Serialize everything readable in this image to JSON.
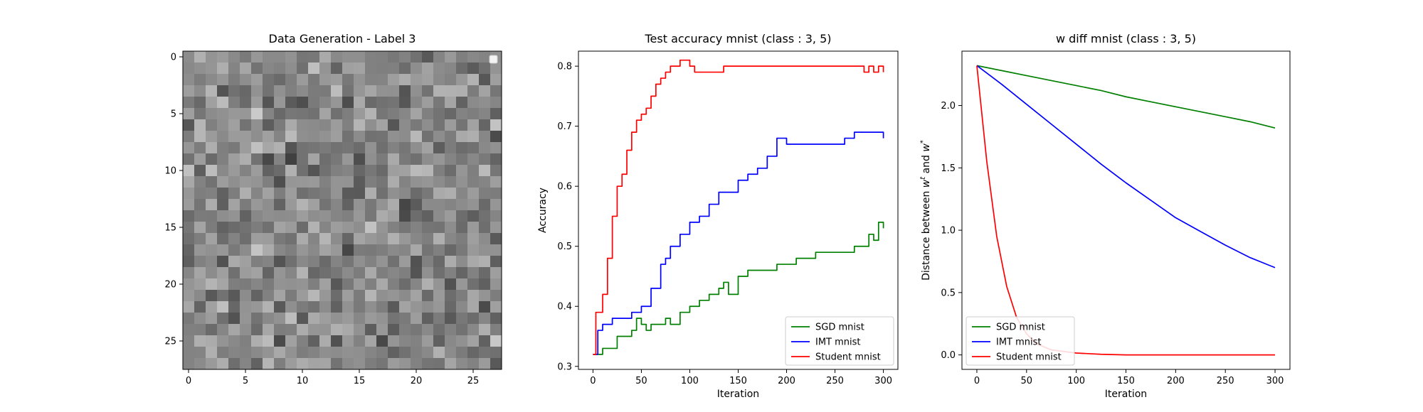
{
  "chart_data": [
    {
      "type": "heatmap",
      "title": "Data Generation - Label 3",
      "xlabel": "",
      "ylabel": "",
      "xticks": [
        0,
        5,
        10,
        15,
        20,
        25
      ],
      "yticks": [
        0,
        5,
        10,
        15,
        20,
        25
      ],
      "extent": [
        -0.5,
        27.5
      ],
      "size": [
        28,
        28
      ],
      "colormap": "gray",
      "legend": "top-right (empty)",
      "values_note": "random noise grid"
    },
    {
      "type": "line",
      "title": "Test accuracy mnist (class : 3, 5)",
      "xlabel": "Iteration",
      "ylabel": "Accuracy",
      "xlim": [
        -15,
        315
      ],
      "ylim": [
        0.295,
        0.825
      ],
      "xticks": [
        0,
        50,
        100,
        150,
        200,
        250,
        300
      ],
      "yticks": [
        0.3,
        0.4,
        0.5,
        0.6,
        0.7,
        0.8
      ],
      "legend": "bottom-right",
      "series": [
        {
          "name": "SGD mnist",
          "color": "#008000",
          "x": [
            0,
            10,
            20,
            25,
            30,
            40,
            45,
            50,
            55,
            60,
            70,
            75,
            80,
            90,
            100,
            110,
            120,
            130,
            135,
            140,
            150,
            160,
            170,
            180,
            190,
            200,
            210,
            220,
            230,
            240,
            250,
            260,
            270,
            280,
            285,
            290,
            295,
            300
          ],
          "y": [
            0.32,
            0.33,
            0.33,
            0.35,
            0.35,
            0.36,
            0.38,
            0.37,
            0.36,
            0.37,
            0.37,
            0.38,
            0.37,
            0.39,
            0.4,
            0.41,
            0.42,
            0.43,
            0.44,
            0.42,
            0.45,
            0.46,
            0.46,
            0.46,
            0.47,
            0.47,
            0.48,
            0.48,
            0.49,
            0.49,
            0.49,
            0.49,
            0.5,
            0.5,
            0.52,
            0.51,
            0.54,
            0.53
          ]
        },
        {
          "name": "IMT mnist",
          "color": "#0000ff",
          "x": [
            0,
            5,
            10,
            20,
            30,
            40,
            50,
            60,
            70,
            75,
            80,
            90,
            100,
            110,
            120,
            130,
            140,
            150,
            160,
            170,
            180,
            190,
            200,
            210,
            230,
            250,
            260,
            270,
            280,
            290,
            300
          ],
          "y": [
            0.32,
            0.36,
            0.37,
            0.38,
            0.38,
            0.39,
            0.4,
            0.43,
            0.47,
            0.48,
            0.5,
            0.52,
            0.54,
            0.55,
            0.57,
            0.59,
            0.59,
            0.61,
            0.62,
            0.63,
            0.65,
            0.68,
            0.67,
            0.67,
            0.67,
            0.67,
            0.68,
            0.69,
            0.69,
            0.69,
            0.68
          ]
        },
        {
          "name": "Student mnist",
          "color": "#ff0000",
          "x": [
            0,
            3,
            6,
            10,
            15,
            20,
            25,
            30,
            35,
            40,
            45,
            50,
            55,
            60,
            65,
            70,
            75,
            80,
            90,
            100,
            105,
            130,
            135,
            200,
            250,
            275,
            280,
            285,
            290,
            295,
            300
          ],
          "y": [
            0.32,
            0.39,
            0.39,
            0.42,
            0.48,
            0.55,
            0.6,
            0.62,
            0.66,
            0.69,
            0.71,
            0.72,
            0.73,
            0.75,
            0.77,
            0.78,
            0.79,
            0.8,
            0.81,
            0.8,
            0.79,
            0.79,
            0.8,
            0.8,
            0.8,
            0.8,
            0.79,
            0.8,
            0.79,
            0.8,
            0.79
          ]
        }
      ]
    },
    {
      "type": "line",
      "title": "w diff mnist (class : 3, 5)",
      "xlabel": "Iteration",
      "ylabel": "Distance between w^t and w^*",
      "xlim": [
        -15,
        315
      ],
      "ylim": [
        -0.116,
        2.436
      ],
      "xticks": [
        0,
        50,
        100,
        150,
        200,
        250,
        300
      ],
      "yticks": [
        0.0,
        0.5,
        1.0,
        1.5,
        2.0
      ],
      "legend": "bottom-left",
      "series": [
        {
          "name": "SGD mnist",
          "color": "#008000",
          "x": [
            0,
            25,
            50,
            75,
            100,
            125,
            150,
            175,
            200,
            225,
            250,
            275,
            300
          ],
          "y": [
            2.32,
            2.28,
            2.24,
            2.2,
            2.16,
            2.12,
            2.07,
            2.03,
            1.99,
            1.95,
            1.91,
            1.87,
            1.82
          ]
        },
        {
          "name": "IMT mnist",
          "color": "#0000ff",
          "x": [
            0,
            25,
            50,
            75,
            100,
            125,
            150,
            175,
            200,
            225,
            250,
            275,
            300
          ],
          "y": [
            2.32,
            2.17,
            2.01,
            1.85,
            1.69,
            1.53,
            1.38,
            1.24,
            1.1,
            0.99,
            0.88,
            0.78,
            0.7
          ]
        },
        {
          "name": "Student mnist",
          "color": "#ff0000",
          "x": [
            0,
            10,
            20,
            30,
            40,
            50,
            60,
            75,
            100,
            125,
            150,
            200,
            250,
            300
          ],
          "y": [
            2.32,
            1.55,
            0.95,
            0.55,
            0.3,
            0.17,
            0.09,
            0.04,
            0.015,
            0.005,
            0.0,
            0.0,
            0.0,
            0.0
          ]
        }
      ]
    }
  ]
}
